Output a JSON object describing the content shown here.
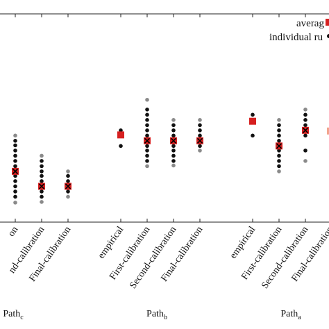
{
  "chart_data": {
    "type": "scatter",
    "legend": {
      "placement": "top-right",
      "entries": [
        "averag",
        "individual ru"
      ]
    },
    "categories": [
      {
        "label": "on",
        "group": "Pathc"
      },
      {
        "label": "nd-calibration",
        "group": "Pathc"
      },
      {
        "label": "Final-calibration",
        "group": "Pathc"
      },
      {
        "label": "empirical",
        "group": "Pathb"
      },
      {
        "label": "First-calibration",
        "group": "Pathb"
      },
      {
        "label": "Second-calibration",
        "group": "Pathb"
      },
      {
        "label": "Final-calibration",
        "group": "Pathb"
      },
      {
        "label": "empirical",
        "group": "Patha"
      },
      {
        "label": "First-calibration",
        "group": "Patha"
      },
      {
        "label": "Second-calibration",
        "group": "Patha"
      },
      {
        "label": "Final-calibration",
        "group": "Patha"
      }
    ],
    "groups": [
      {
        "id": "Pathc",
        "base": "Path",
        "sub": "c"
      },
      {
        "id": "Pathb",
        "base": "Path",
        "sub": "b"
      },
      {
        "id": "Patha",
        "base": "Path",
        "sub": "a"
      }
    ],
    "ylim": [
      0,
      320
    ],
    "grid": false,
    "series": [
      {
        "name": "averag",
        "marker": "red-square-x",
        "values": [
          [
            0,
            78
          ],
          [
            1,
            55
          ],
          [
            2,
            55
          ],
          [
            3,
            134
          ],
          [
            4,
            125
          ],
          [
            5,
            125
          ],
          [
            6,
            125
          ],
          [
            7,
            155
          ],
          [
            8,
            117
          ],
          [
            9,
            141
          ],
          [
            10,
            140
          ]
        ]
      },
      {
        "name": "individual ru",
        "marker": "dot",
        "values": [
          [
            0,
            30
          ],
          [
            0,
            39
          ],
          [
            0,
            47
          ],
          [
            0,
            55
          ],
          [
            0,
            63
          ],
          [
            0,
            71
          ],
          [
            0,
            78
          ],
          [
            0,
            86
          ],
          [
            0,
            94
          ],
          [
            0,
            102
          ],
          [
            0,
            110
          ],
          [
            0,
            118
          ],
          [
            0,
            125
          ],
          [
            0,
            133
          ],
          [
            1,
            31
          ],
          [
            1,
            39
          ],
          [
            1,
            47
          ],
          [
            1,
            55
          ],
          [
            1,
            63
          ],
          [
            1,
            71
          ],
          [
            1,
            78
          ],
          [
            1,
            86
          ],
          [
            1,
            94
          ],
          [
            1,
            102
          ],
          [
            2,
            39
          ],
          [
            2,
            47
          ],
          [
            2,
            55
          ],
          [
            2,
            63
          ],
          [
            2,
            71
          ],
          [
            2,
            78
          ],
          [
            3,
            117
          ],
          [
            3,
            141
          ],
          [
            4,
            86
          ],
          [
            4,
            94
          ],
          [
            4,
            102
          ],
          [
            4,
            110
          ],
          [
            4,
            117
          ],
          [
            4,
            125
          ],
          [
            4,
            133
          ],
          [
            4,
            141
          ],
          [
            4,
            149
          ],
          [
            4,
            157
          ],
          [
            4,
            165
          ],
          [
            4,
            173
          ],
          [
            4,
            188
          ],
          [
            5,
            87
          ],
          [
            5,
            94
          ],
          [
            5,
            102
          ],
          [
            5,
            110
          ],
          [
            5,
            117
          ],
          [
            5,
            125
          ],
          [
            5,
            133
          ],
          [
            5,
            141
          ],
          [
            5,
            149
          ],
          [
            5,
            157
          ],
          [
            6,
            110
          ],
          [
            6,
            117
          ],
          [
            6,
            125
          ],
          [
            6,
            133
          ],
          [
            6,
            141
          ],
          [
            6,
            149
          ],
          [
            6,
            157
          ],
          [
            7,
            133
          ],
          [
            7,
            165
          ],
          [
            8,
            78
          ],
          [
            8,
            86
          ],
          [
            8,
            94
          ],
          [
            8,
            102
          ],
          [
            8,
            110
          ],
          [
            8,
            117
          ],
          [
            8,
            125
          ],
          [
            8,
            133
          ],
          [
            8,
            141
          ],
          [
            8,
            149
          ],
          [
            8,
            157
          ],
          [
            9,
            94
          ],
          [
            9,
            110
          ],
          [
            9,
            133
          ],
          [
            9,
            149
          ],
          [
            9,
            157
          ],
          [
            9,
            165
          ],
          [
            9,
            173
          ]
        ]
      }
    ],
    "colors": {
      "average": "#d62020",
      "average_cross": "#000000",
      "run_dark": "#111111",
      "run_light": "#8a8a8a",
      "partial_marker": "#f2a58e"
    }
  }
}
